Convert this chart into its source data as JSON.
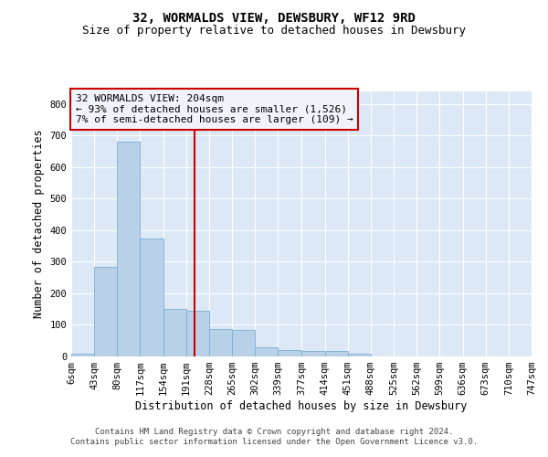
{
  "title": "32, WORMALDS VIEW, DEWSBURY, WF12 9RD",
  "subtitle": "Size of property relative to detached houses in Dewsbury",
  "xlabel": "Distribution of detached houses by size in Dewsbury",
  "ylabel": "Number of detached properties",
  "footer_line1": "Contains HM Land Registry data © Crown copyright and database right 2024.",
  "footer_line2": "Contains public sector information licensed under the Open Government Licence v3.0.",
  "annotation_line1": "32 WORMALDS VIEW: 204sqm",
  "annotation_line2": "← 93% of detached houses are smaller (1,526)",
  "annotation_line3": "7% of semi-detached houses are larger (109) →",
  "property_size": 204,
  "bin_edges": [
    6,
    43,
    80,
    117,
    154,
    191,
    228,
    265,
    302,
    339,
    377,
    414,
    451,
    488,
    525,
    562,
    599,
    636,
    673,
    710,
    747
  ],
  "bar_heights": [
    8,
    285,
    680,
    375,
    150,
    145,
    88,
    85,
    28,
    20,
    18,
    18,
    10,
    0,
    0,
    0,
    0,
    0,
    0,
    0
  ],
  "bar_color": "#b8d0e8",
  "bar_edge_color": "#7aafd4",
  "marker_color": "#cc0000",
  "background_color": "#dce8f5",
  "grid_color": "#ffffff",
  "ylim": [
    0,
    840
  ],
  "yticks": [
    0,
    100,
    200,
    300,
    400,
    500,
    600,
    700,
    800
  ],
  "annotation_box_facecolor": "#f0f4fa",
  "annotation_box_edge": "#cc0000",
  "title_fontsize": 10,
  "subtitle_fontsize": 9,
  "axis_label_fontsize": 8.5,
  "tick_fontsize": 7.5,
  "annotation_fontsize": 8,
  "footer_fontsize": 6.5
}
